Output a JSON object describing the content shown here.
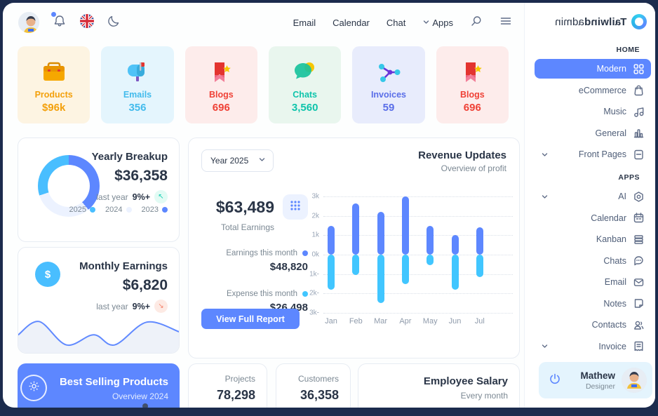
{
  "backdrop_color": "#1b2b4d",
  "accent": {
    "primary": "#5d87ff",
    "secondary": "#49beff",
    "text_dark": "#2a3547",
    "text_gray": "#7b8893"
  },
  "logo": {
    "brand_bold": "Tailwind",
    "brand_rest": "admin"
  },
  "header": {
    "nav_items": [
      "Email",
      "Calendar",
      "Chat"
    ],
    "apps_label": "Apps",
    "icon_names": [
      "user-avatar",
      "notification-bell",
      "uk-flag",
      "dark-mode-moon",
      "search",
      "menu"
    ]
  },
  "stats": [
    {
      "label": "Products",
      "value": "$96k",
      "color": "#f3a00b",
      "bg": "#fdf4e2",
      "icon": "briefcase"
    },
    {
      "label": "Emails",
      "value": "356",
      "color": "#43bbec",
      "bg": "#e4f5fd",
      "icon": "mailbox"
    },
    {
      "label": "Blogs",
      "value": "696",
      "color": "#ef4136",
      "bg": "#fdeceb",
      "icon": "bookmark"
    },
    {
      "label": "Chats",
      "value": "3,560",
      "color": "#0ec4ab",
      "bg": "#e9f6ee",
      "icon": "bubble"
    },
    {
      "label": "Invoices",
      "value": "59",
      "color": "#5a6ee8",
      "bg": "#e8ecfc",
      "icon": "share"
    },
    {
      "label": "Blogs",
      "value": "696",
      "color": "#ef4136",
      "bg": "#fdeceb",
      "icon": "bookmark"
    }
  ],
  "cards": {
    "yearly_breakup": {
      "title": "Yearly Breakup",
      "value": "$36,358",
      "note_label": "last year",
      "note_value": "9%+",
      "legend": [
        {
          "year": "2025",
          "color": "#49beff"
        },
        {
          "year": "2024",
          "color": "#ecf2ff"
        },
        {
          "year": "2023",
          "color": "#5d87ff"
        }
      ]
    },
    "revenue_updates": {
      "year_select": "Year 2025",
      "title": "Revenue Updates",
      "subtitle": "Overview of profit",
      "total": "$63,489",
      "total_label": "Total Earnings",
      "earnings_label": "Earnings this month",
      "earnings_value": "$48,820",
      "earnings_dot": "#5d87ff",
      "expense_label": "Expense this month",
      "expense_value": "$26,498",
      "expense_dot": "#41c6ff",
      "button": "View Full Report"
    },
    "monthly_earnings": {
      "title": "Monthly Earnings",
      "value": "$6,820",
      "note_label": "last year",
      "note_value": "9%+"
    },
    "best_selling": {
      "title": "Best Selling Products",
      "subtitle": "Overview 2024"
    },
    "projects": {
      "label": "Projects",
      "value": "78,298"
    },
    "customers": {
      "label": "Customers",
      "value": "36,358"
    },
    "employee_salary": {
      "title": "Employee Salary",
      "subtitle": "Every month"
    }
  },
  "sidebar": {
    "sections": [
      {
        "label": "HOME",
        "items": [
          {
            "label": "Modern",
            "icon": "grid",
            "active": true
          },
          {
            "label": "eCommerce",
            "icon": "bag"
          },
          {
            "label": "Music",
            "icon": "music"
          },
          {
            "label": "General",
            "icon": "chart"
          },
          {
            "label": "Front Pages",
            "icon": "doc",
            "expandable": true
          }
        ]
      },
      {
        "label": "APPS",
        "items": [
          {
            "label": "AI",
            "icon": "ai",
            "expandable": true
          },
          {
            "label": "Calendar",
            "icon": "calendar"
          },
          {
            "label": "Kanban",
            "icon": "kanban"
          },
          {
            "label": "Chats",
            "icon": "chatline"
          },
          {
            "label": "Email",
            "icon": "mail"
          },
          {
            "label": "Notes",
            "icon": "note"
          },
          {
            "label": "Contacts",
            "icon": "contacts"
          },
          {
            "label": "Invoice",
            "icon": "invoice",
            "expandable": true
          }
        ]
      }
    ],
    "user": {
      "name": "Mathew",
      "role": "Designer"
    }
  },
  "chart_data": [
    {
      "name": "revenue-updates-bars",
      "type": "bar",
      "title": "Revenue Updates",
      "subtitle": "Overview of profit",
      "x": [
        "Jan",
        "Feb",
        "Mar",
        "Apr",
        "May",
        "Jun",
        "Jul"
      ],
      "series": [
        {
          "name": "Earnings this month",
          "color": "#5d87ff",
          "values": [
            1.5,
            2.65,
            2.2,
            3.0,
            1.5,
            1.0,
            1.4
          ]
        },
        {
          "name": "Expense this month",
          "color": "#41c6ff",
          "values": [
            -1.8,
            -1.05,
            -2.5,
            -1.5,
            -0.55,
            -1.8,
            -1.15
          ]
        }
      ],
      "ylim": [
        -3,
        3
      ],
      "ytick_labels": [
        "3k",
        "2k",
        "1k",
        "0k",
        "1k-",
        "2k-",
        "3k-"
      ],
      "grid": "horizontal-dotted",
      "legend_position": "left-panel"
    },
    {
      "name": "yearly-breakup-donut",
      "type": "pie",
      "title": "Yearly Breakup",
      "slices": [
        {
          "label": "2023",
          "value": 39,
          "color": "#5d87ff"
        },
        {
          "label": "2024",
          "value": 31,
          "color": "#ecf2ff"
        },
        {
          "label": "2025",
          "value": 30,
          "color": "#49beff"
        }
      ]
    },
    {
      "name": "monthly-earnings-sparkline",
      "type": "area",
      "title": "Monthly Earnings",
      "line_color": "#618aff",
      "fill_color": "#eef2f9",
      "points_pct": [
        [
          0,
          55
        ],
        [
          13,
          12
        ],
        [
          30,
          88
        ],
        [
          47,
          55
        ],
        [
          60,
          88
        ],
        [
          80,
          14
        ],
        [
          100,
          45
        ]
      ]
    }
  ]
}
